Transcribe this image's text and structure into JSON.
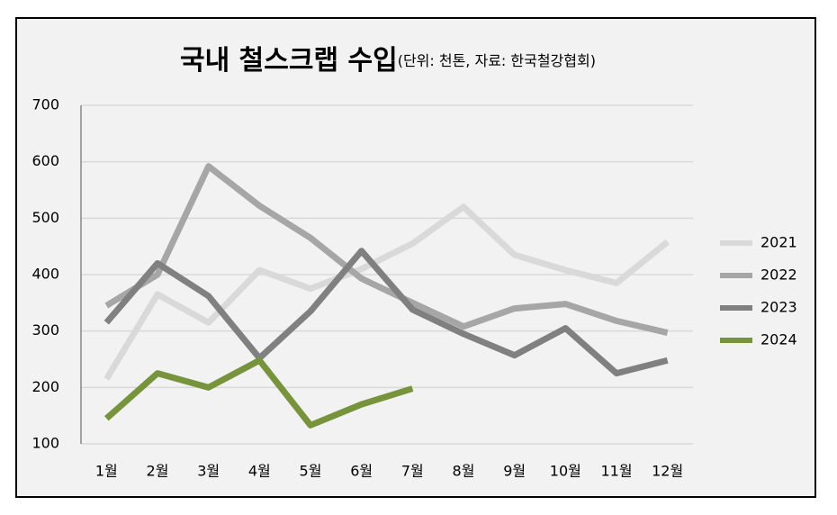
{
  "chart_data": {
    "type": "line",
    "title": "국내 철스크랩 수입",
    "subtitle": "(단위: 천톤, 자료: 한국철강협회)",
    "categories": [
      "1월",
      "2월",
      "3월",
      "4월",
      "5월",
      "6월",
      "7월",
      "8월",
      "9월",
      "10월",
      "11월",
      "12월"
    ],
    "series": [
      {
        "name": "2021",
        "color": "#d9d9d9",
        "values": [
          215,
          365,
          315,
          408,
          375,
          410,
          455,
          520,
          435,
          408,
          385,
          458
        ]
      },
      {
        "name": "2022",
        "color": "#a6a6a6",
        "values": [
          345,
          400,
          592,
          522,
          465,
          393,
          350,
          308,
          340,
          348,
          318,
          297
        ]
      },
      {
        "name": "2023",
        "color": "#808080",
        "values": [
          315,
          420,
          362,
          252,
          335,
          442,
          338,
          295,
          257,
          305,
          225,
          248
        ]
      },
      {
        "name": "2024",
        "color": "#77933c",
        "values": [
          145,
          225,
          200,
          248,
          133,
          170,
          198,
          null,
          null,
          null,
          null,
          null
        ]
      }
    ],
    "ylim": [
      100,
      700
    ],
    "yticks": [
      100,
      200,
      300,
      400,
      500,
      600,
      700
    ],
    "grid": true,
    "legend": "right"
  }
}
